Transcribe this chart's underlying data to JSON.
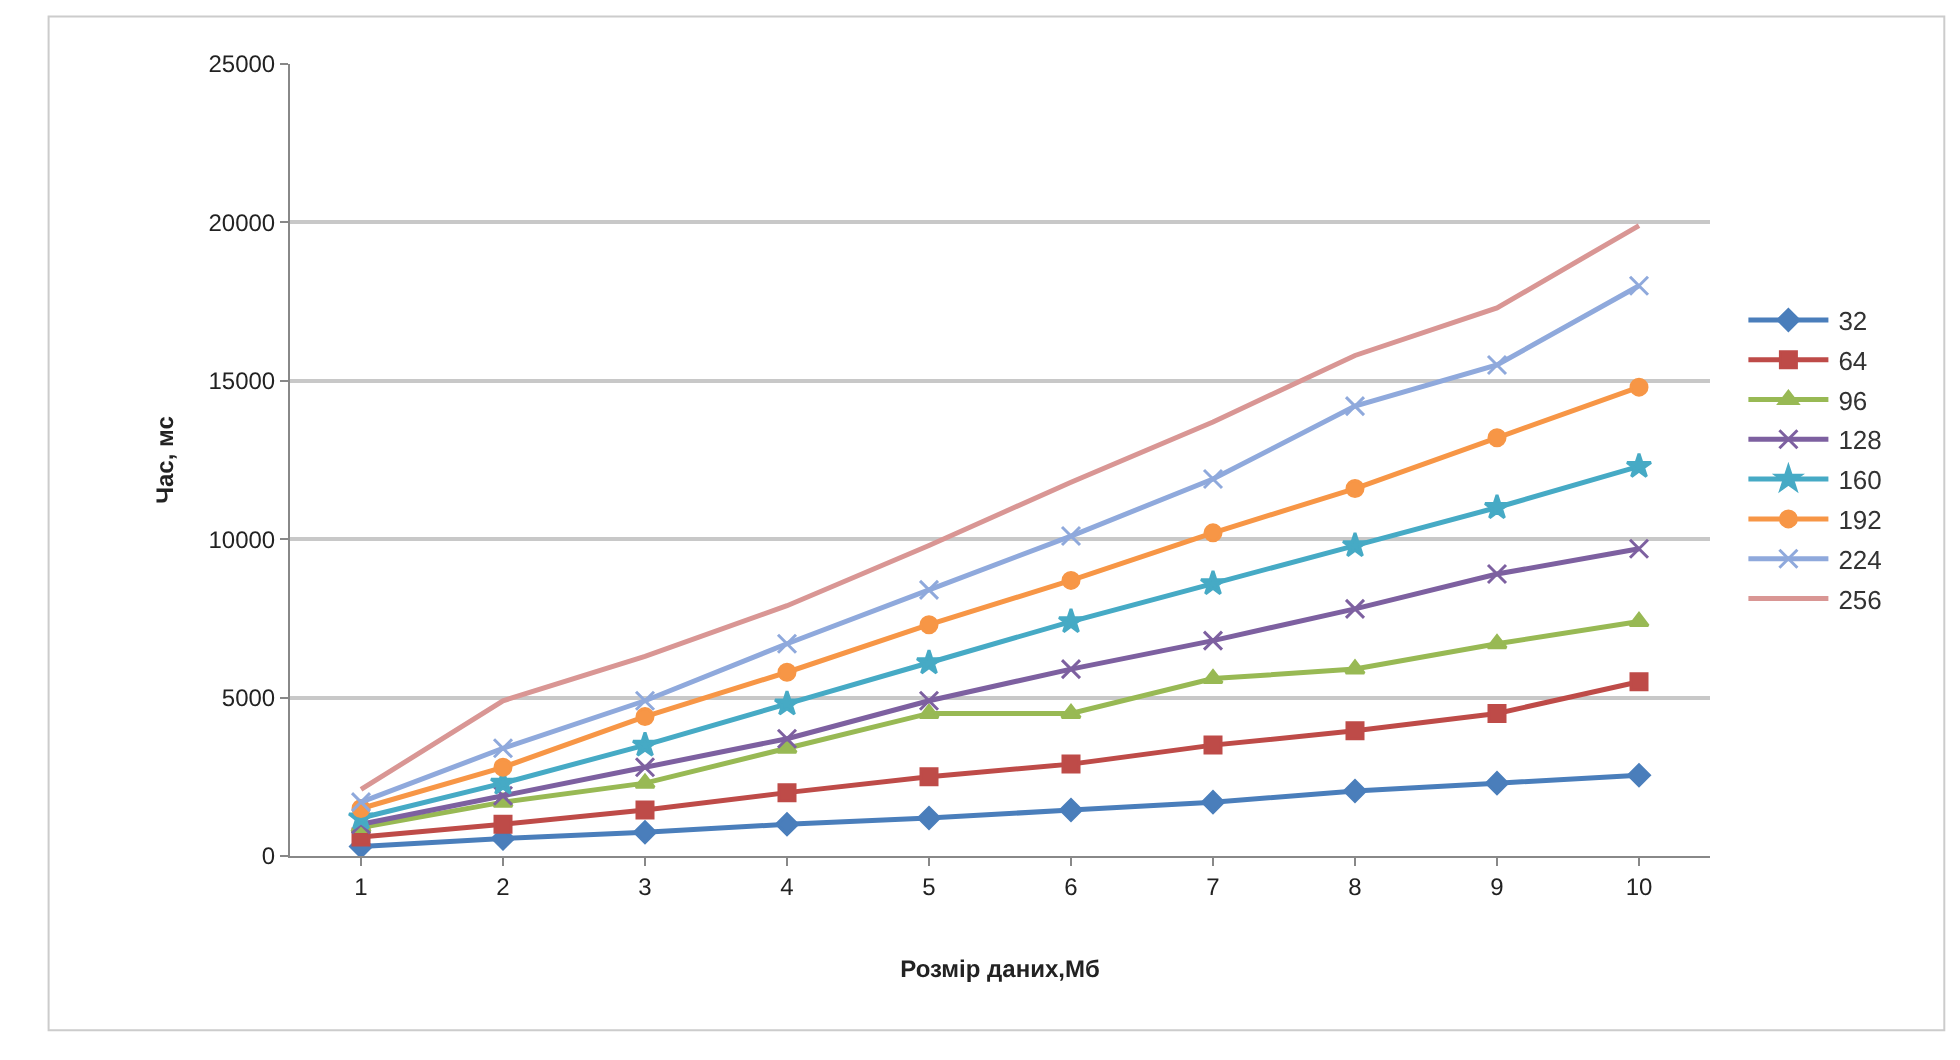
{
  "chart_data": {
    "type": "line",
    "xlabel": "Розмір даних,Мб",
    "ylabel": "Час, мс",
    "categories": [
      "1",
      "2",
      "3",
      "4",
      "5",
      "6",
      "7",
      "8",
      "9",
      "10"
    ],
    "ylim": [
      0,
      25000
    ],
    "yticks": [
      0,
      5000,
      10000,
      15000,
      20000,
      25000
    ],
    "grid": "y",
    "legend": "right",
    "line_style": "solid",
    "series": [
      {
        "name": "32",
        "color": "#4a7ebb",
        "marker": "diamond",
        "values": [
          300,
          550,
          750,
          1000,
          1200,
          1450,
          1700,
          2050,
          2300,
          2550
        ]
      },
      {
        "name": "64",
        "color": "#be4b48",
        "marker": "square",
        "values": [
          600,
          1000,
          1450,
          2000,
          2500,
          2900,
          3500,
          3950,
          4500,
          5500
        ]
      },
      {
        "name": "96",
        "color": "#98b954",
        "marker": "triangle",
        "values": [
          900,
          1700,
          2300,
          3400,
          4500,
          4500,
          5600,
          5900,
          6700,
          7400
        ]
      },
      {
        "name": "128",
        "color": "#7d60a0",
        "marker": "cross",
        "values": [
          1000,
          1900,
          2800,
          3700,
          4900,
          5900,
          6800,
          7800,
          8900,
          9700
        ]
      },
      {
        "name": "160",
        "color": "#46aac5",
        "marker": "star",
        "values": [
          1200,
          2300,
          3500,
          4800,
          6100,
          7400,
          8600,
          9800,
          11000,
          12300
        ]
      },
      {
        "name": "192",
        "color": "#f79646",
        "marker": "circle",
        "values": [
          1500,
          2800,
          4400,
          5800,
          7300,
          8700,
          10200,
          11600,
          13200,
          14800
        ]
      },
      {
        "name": "224",
        "color": "#8fa9dc",
        "marker": "cross",
        "values": [
          1700,
          3400,
          4900,
          6700,
          8400,
          10100,
          11900,
          14200,
          15500,
          18000
        ]
      },
      {
        "name": "256",
        "color": "#d99694",
        "marker": "none",
        "values": [
          2100,
          4900,
          6300,
          7900,
          9800,
          11800,
          13700,
          15800,
          17300,
          19900
        ]
      }
    ]
  }
}
